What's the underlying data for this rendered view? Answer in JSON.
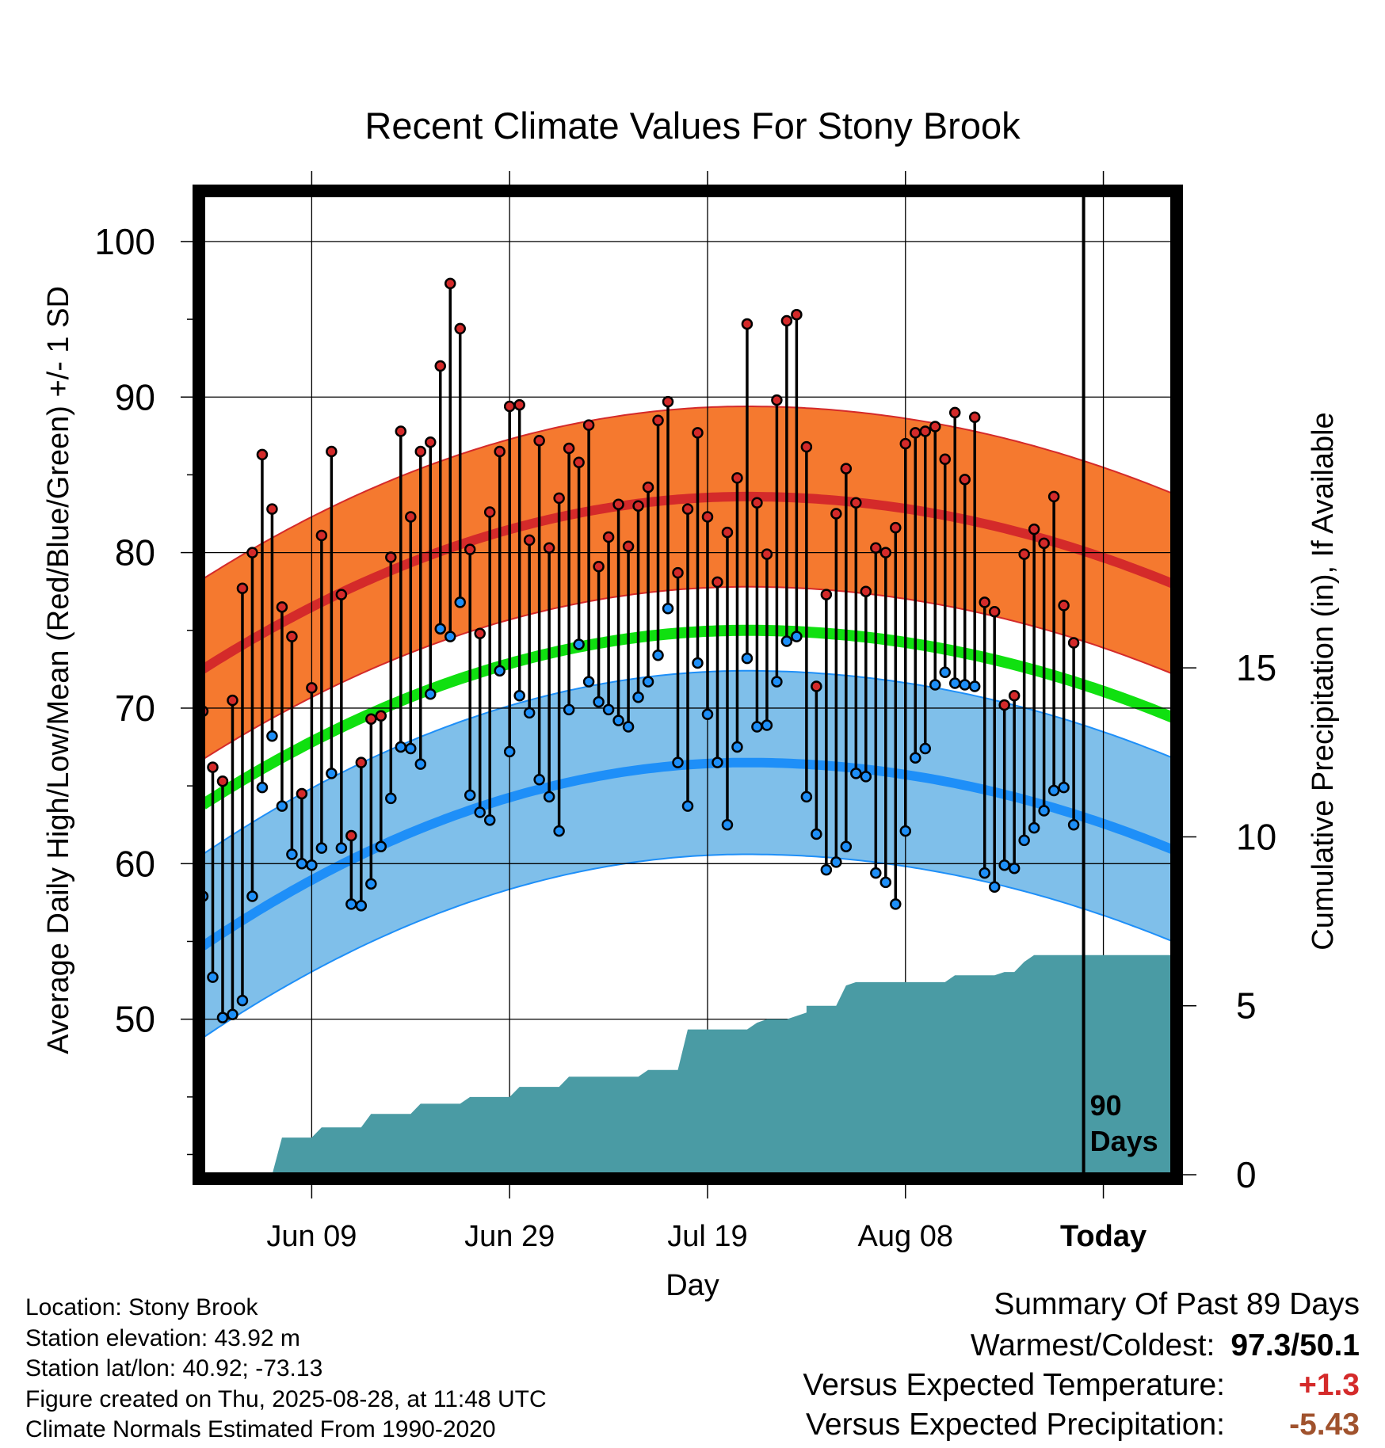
{
  "chart_data": {
    "type": "line",
    "title": "Recent Climate Values For Stony Brook",
    "xlabel": "Day",
    "ylabel": "Average Daily High/Low/Mean (Red/Blue/Green) +/- 1 SD",
    "ylabel_right": "Cumulative Precipitation (in), If Available",
    "x_ticks": [
      "Jun 09",
      "Jun 29",
      "Jul 19",
      "Aug 08",
      "Today"
    ],
    "y_ticks": [
      "100",
      "90",
      "80",
      "70",
      "60",
      "50"
    ],
    "y2_ticks": [
      "15",
      "10",
      "5",
      "0"
    ],
    "ylim": [
      40,
      103
    ],
    "y2lim": [
      0,
      29
    ],
    "x_range_days": [
      -89,
      9
    ],
    "window_label": [
      "90",
      "Days"
    ],
    "normals": {
      "high_mean": {
        "start": 72.5,
        "peak": 83.6,
        "end": 78.0
      },
      "high_sd": 5.8,
      "mean_mean": {
        "start": 63.8,
        "peak": 75.0,
        "end": 69.4
      },
      "low_mean": {
        "start": 54.7,
        "peak": 66.5,
        "end": 60.9
      },
      "low_sd": 5.9
    },
    "daily_high": [
      69.8,
      66.2,
      65.3,
      70.5,
      77.7,
      80.0,
      86.3,
      82.8,
      76.5,
      74.6,
      64.5,
      71.3,
      81.1,
      86.5,
      77.3,
      61.8,
      66.5,
      69.3,
      69.5,
      79.7,
      87.8,
      82.3,
      86.5,
      87.1,
      92.0,
      97.3,
      94.4,
      80.2,
      74.8,
      82.6,
      86.5,
      89.4,
      89.5,
      80.8,
      87.2,
      80.3,
      83.5,
      86.7,
      85.8,
      88.2,
      79.1,
      81.0,
      83.1,
      80.4,
      83.0,
      84.2,
      88.5,
      89.7,
      78.7,
      82.8,
      87.7,
      82.3,
      78.1,
      81.3,
      84.8,
      94.7,
      83.2,
      79.9,
      89.8,
      94.9,
      95.3,
      86.8,
      71.4,
      77.3,
      82.5,
      85.4,
      83.2,
      77.5,
      80.3,
      80.0,
      81.6,
      87.0,
      87.7,
      87.8,
      88.1,
      86.0,
      89.0,
      84.7,
      88.7,
      76.8,
      76.2,
      70.2,
      70.8,
      79.9,
      81.5,
      80.6,
      83.6,
      76.6,
      74.2
    ],
    "daily_low": [
      57.9,
      52.7,
      50.1,
      50.3,
      51.2,
      57.9,
      64.9,
      68.2,
      63.7,
      60.6,
      60.0,
      59.9,
      61.0,
      65.8,
      61.0,
      57.4,
      57.3,
      58.7,
      61.1,
      64.2,
      67.5,
      67.4,
      66.4,
      70.9,
      75.1,
      74.6,
      76.8,
      64.4,
      63.3,
      62.8,
      72.4,
      67.2,
      70.8,
      69.7,
      65.4,
      64.3,
      62.1,
      69.9,
      74.1,
      71.7,
      70.4,
      69.9,
      69.2,
      68.8,
      70.7,
      71.7,
      73.4,
      76.4,
      66.5,
      63.7,
      72.9,
      69.6,
      66.5,
      62.5,
      67.5,
      73.2,
      68.8,
      68.9,
      71.7,
      74.3,
      74.6,
      64.3,
      61.9,
      59.6,
      60.1,
      61.1,
      65.8,
      65.6,
      59.4,
      58.8,
      57.4,
      62.1,
      66.8,
      67.4,
      71.5,
      72.3,
      71.6,
      71.5,
      71.4,
      59.4,
      58.5,
      59.9,
      59.7,
      61.5,
      62.3,
      63.4,
      64.7,
      64.9,
      62.5
    ],
    "precip_cumulative": [
      [
        -89,
        0
      ],
      [
        -82,
        0
      ],
      [
        -81,
        1.1
      ],
      [
        -78,
        1.1
      ],
      [
        -77,
        1.4
      ],
      [
        -73,
        1.4
      ],
      [
        -72,
        1.8
      ],
      [
        -68,
        1.8
      ],
      [
        -67,
        2.1
      ],
      [
        -63,
        2.1
      ],
      [
        -62,
        2.3
      ],
      [
        -58,
        2.3
      ],
      [
        -57,
        2.6
      ],
      [
        -53,
        2.6
      ],
      [
        -52,
        2.9
      ],
      [
        -45,
        2.9
      ],
      [
        -44,
        3.1
      ],
      [
        -41,
        3.1
      ],
      [
        -40,
        4.3
      ],
      [
        -34,
        4.3
      ],
      [
        -33,
        4.5
      ],
      [
        -32,
        4.6
      ],
      [
        -30,
        4.6
      ],
      [
        -28,
        4.8
      ],
      [
        -28,
        5.0
      ],
      [
        -25,
        5.0
      ],
      [
        -24,
        5.6
      ],
      [
        -23,
        5.7
      ],
      [
        -14,
        5.7
      ],
      [
        -13,
        5.9
      ],
      [
        -9,
        5.9
      ],
      [
        -8,
        6.0
      ],
      [
        -7,
        6.0
      ],
      [
        -6,
        6.3
      ],
      [
        -5,
        6.5
      ],
      [
        -1,
        6.5
      ],
      [
        9,
        6.5
      ]
    ],
    "colors": {
      "high_band": "#F5792F",
      "high_line": "#D42A2A",
      "mean_line": "#10E010",
      "low_band": "#7FBFEA",
      "low_line": "#1E8FF8",
      "band_edge_high": "#D42A2A",
      "band_edge_low": "#1E8FF8",
      "precip_fill": "#4A9BA4",
      "high_marker": "#D42A2A",
      "low_marker": "#1E8FF8",
      "today_positive": "#D42A2A",
      "precip_anomaly": "#A0522D"
    }
  },
  "info": {
    "location": "Location: Stony Brook",
    "elevation": "Station elevation: 43.92 m",
    "latlon": "Station lat/lon: 40.92; -73.13",
    "created": "Figure created on Thu, 2025-08-28, at 11:48 UTC",
    "normals": "Climate Normals Estimated From 1990-2020"
  },
  "summary": {
    "title": "Summary Of Past 89 Days",
    "warm_cold_label": "Warmest/Coldest:",
    "warm_cold_value": "97.3/50.1",
    "temp_label": "Versus Expected Temperature:",
    "temp_value": "+1.3",
    "precip_label": "Versus Expected Precipitation:",
    "precip_value": "-5.43"
  }
}
